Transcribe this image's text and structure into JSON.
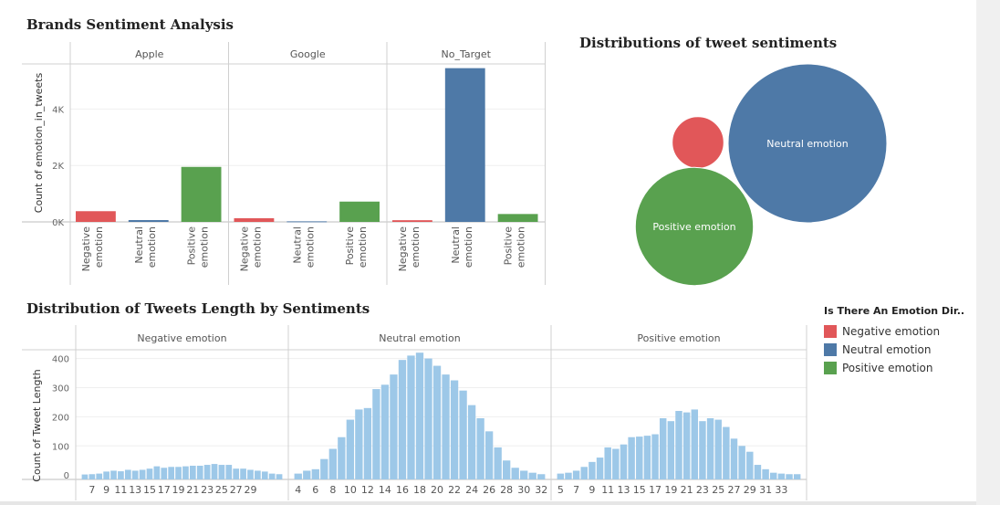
{
  "colors": {
    "negative": "#e15759",
    "neutral": "#4e79a7",
    "positive": "#59a14f",
    "histogram": "#9dc8e8"
  },
  "titles": {
    "brands": "Brands Sentiment Analysis",
    "bubbles": "Distributions of tweet sentiments",
    "lengths": "Distribution of Tweets Length by Sentiments"
  },
  "legend": {
    "title": "Is There An Emotion Dir..",
    "items": [
      {
        "label": "Negative emotion",
        "color_key": "negative"
      },
      {
        "label": "Neutral emotion",
        "color_key": "neutral"
      },
      {
        "label": "Positive emotion",
        "color_key": "positive"
      }
    ]
  },
  "chart_data": [
    {
      "type": "bar",
      "title": "Brands Sentiment Analysis",
      "ylabel": "Count of emotion_in_tweets",
      "ylim": [
        0,
        5600
      ],
      "yticks": [
        {
          "v": 0,
          "label": "0K"
        },
        {
          "v": 2000,
          "label": "2K"
        },
        {
          "v": 4000,
          "label": "4K"
        }
      ],
      "categories": [
        "Negative emotion",
        "Neutral emotion",
        "Positive emotion"
      ],
      "category_lines": [
        [
          "Negative",
          "emotion"
        ],
        [
          "Neutral",
          "emotion"
        ],
        [
          "Positive",
          "emotion"
        ]
      ],
      "panels": [
        {
          "name": "Apple",
          "values": [
            380,
            65,
            1950
          ]
        },
        {
          "name": "Google",
          "values": [
            130,
            20,
            720
          ]
        },
        {
          "name": "No_Target",
          "values": [
            60,
            5450,
            280
          ]
        }
      ]
    },
    {
      "type": "bubble",
      "title": "Distributions of tweet sentiments",
      "series": [
        {
          "name": "Negative emotion",
          "value": 570,
          "label": ""
        },
        {
          "name": "Neutral emotion",
          "value": 5390,
          "label": "Neutral emotion"
        },
        {
          "name": "Positive emotion",
          "value": 2980,
          "label": "Positive emotion"
        }
      ]
    },
    {
      "type": "bar",
      "title": "Distribution of Tweets Length by Sentiments",
      "ylabel": "Count of Tweet Length",
      "ylim": [
        -15,
        430
      ],
      "yticks": [
        0,
        100,
        200,
        300,
        400
      ],
      "panels": [
        {
          "name": "Negative emotion",
          "x_start": 6,
          "xticks": [
            7,
            9,
            11,
            13,
            15,
            17,
            19,
            21,
            23,
            25,
            27,
            29
          ],
          "values": [
            2,
            3,
            5,
            12,
            15,
            13,
            18,
            15,
            18,
            22,
            30,
            25,
            28,
            28,
            30,
            32,
            32,
            35,
            38,
            35,
            35,
            22,
            22,
            18,
            15,
            12,
            5,
            3
          ]
        },
        {
          "name": "Neutral emotion",
          "x_start": 4,
          "xticks": [
            4,
            6,
            8,
            10,
            12,
            14,
            16,
            18,
            20,
            22,
            24,
            26,
            28,
            30,
            32
          ],
          "values": [
            5,
            15,
            20,
            55,
            90,
            130,
            190,
            225,
            230,
            295,
            310,
            345,
            395,
            410,
            420,
            400,
            375,
            345,
            325,
            290,
            240,
            195,
            150,
            95,
            50,
            25,
            15,
            8,
            3
          ]
        },
        {
          "name": "Positive emotion",
          "x_start": 5,
          "xticks": [
            5,
            7,
            9,
            11,
            13,
            15,
            17,
            19,
            21,
            23,
            25,
            27,
            29,
            31,
            33
          ],
          "values": [
            5,
            8,
            15,
            28,
            45,
            60,
            95,
            90,
            105,
            130,
            132,
            135,
            140,
            195,
            185,
            220,
            215,
            225,
            185,
            195,
            190,
            165,
            125,
            100,
            80,
            35,
            20,
            8,
            5,
            3,
            3
          ]
        }
      ]
    }
  ]
}
